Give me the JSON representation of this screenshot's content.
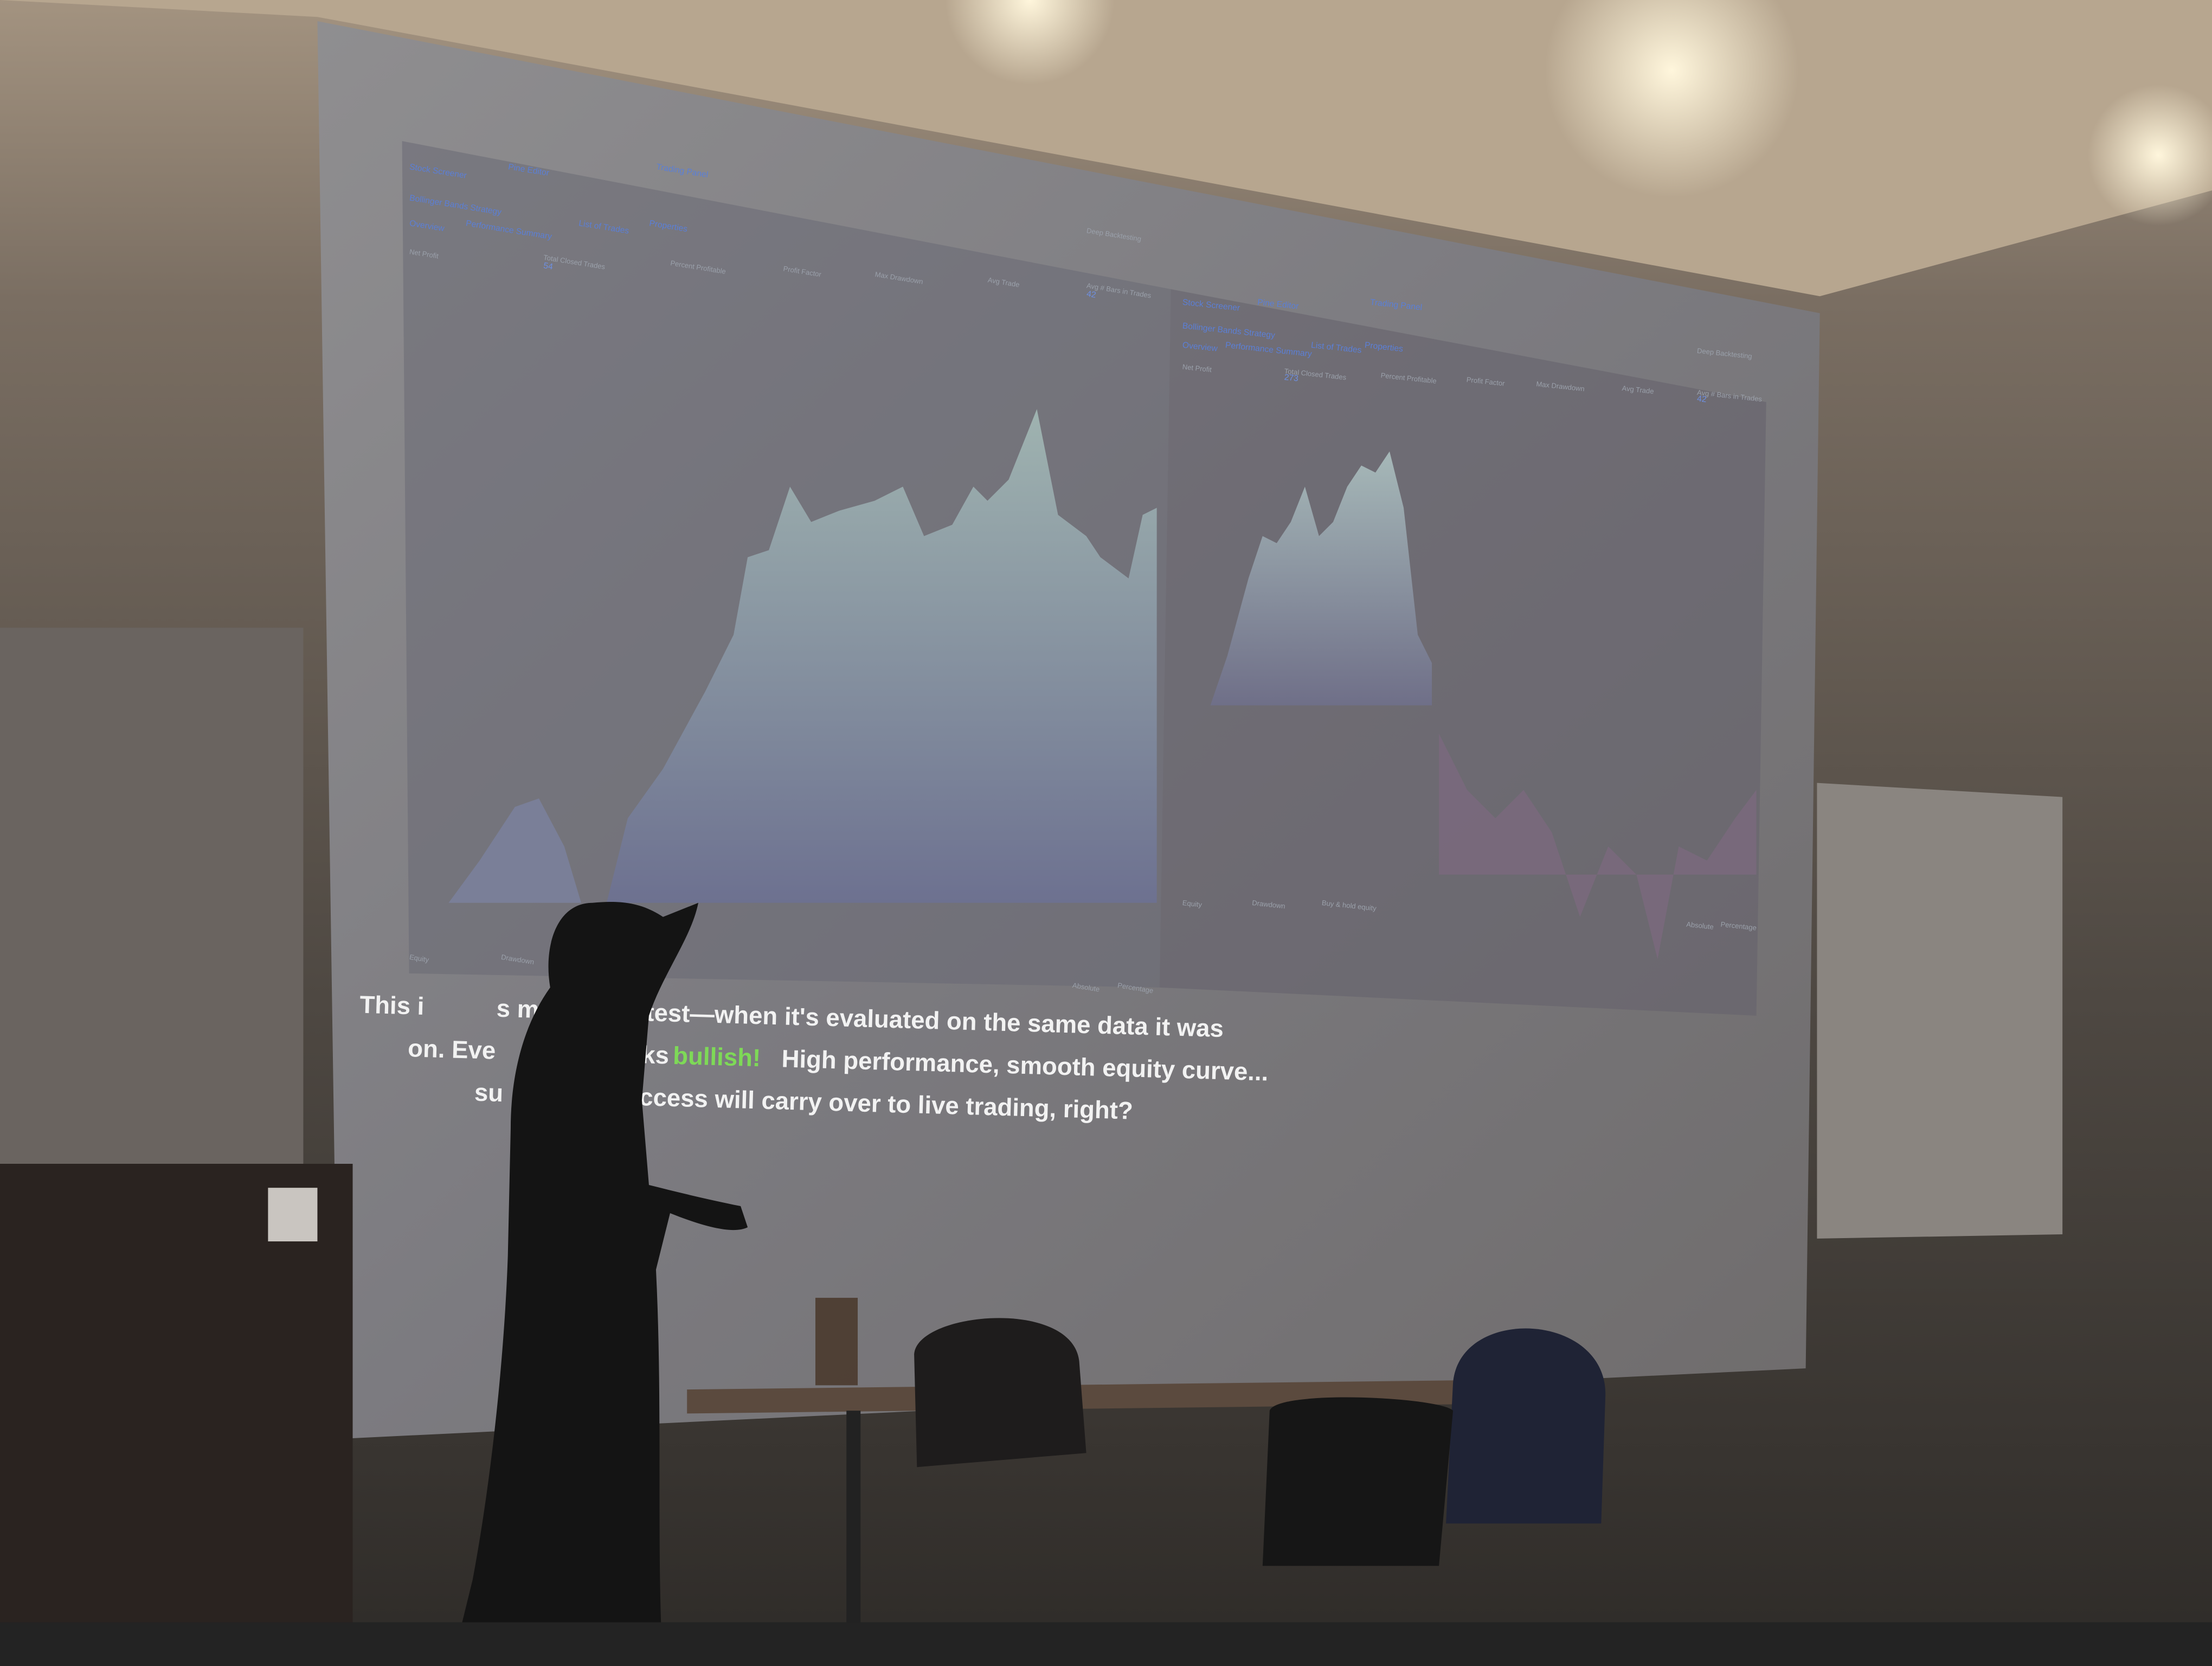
{
  "screen": {
    "left_panel": {
      "nav": [
        "Stock Screener",
        "Pine Editor",
        "Trading Panel"
      ],
      "strategy": "Bollinger Bands Strategy",
      "tabs": [
        "Overview",
        "Performance Summary",
        "List of Trades",
        "Properties"
      ],
      "metrics": [
        "Net Profit",
        "Total Closed Trades",
        "Percent Profitable",
        "Profit Factor",
        "Max Drawdown",
        "Avg Trade",
        "Avg # Bars in Trades"
      ],
      "total_closed_trades": "54",
      "avg_bars": "42",
      "toggle": "Deep Backtesting",
      "legend": [
        "Equity",
        "Drawdown"
      ],
      "scale": [
        "Absolute",
        "Percentage"
      ]
    },
    "right_panel": {
      "nav": [
        "Stock Screener",
        "Pine Editor",
        "Trading Panel"
      ],
      "strategy": "Bollinger Bands Strategy",
      "tabs": [
        "Overview",
        "Performance Summary",
        "List of Trades",
        "Properties"
      ],
      "metrics": [
        "Net Profit",
        "Total Closed Trades",
        "Percent Profitable",
        "Profit Factor",
        "Max Drawdown",
        "Avg Trade",
        "Avg # Bars in Trades"
      ],
      "total_closed_trades": "273",
      "avg_bars": "42",
      "toggle": "Deep Backtesting",
      "legend": [
        "Equity",
        "Drawdown",
        "Buy & hold equity"
      ],
      "scale": [
        "Absolute",
        "Percentage"
      ]
    },
    "caption": {
      "line1": [
        "This i",
        "s mo",
        "test—when it's evaluated on the same data it was"
      ],
      "line2": [
        "on. Eve",
        "oks",
        "bullish!",
        "High performance, smooth equity curve..."
      ],
      "line3": [
        "su",
        "ccess will carry over to live trading, right?"
      ]
    }
  }
}
